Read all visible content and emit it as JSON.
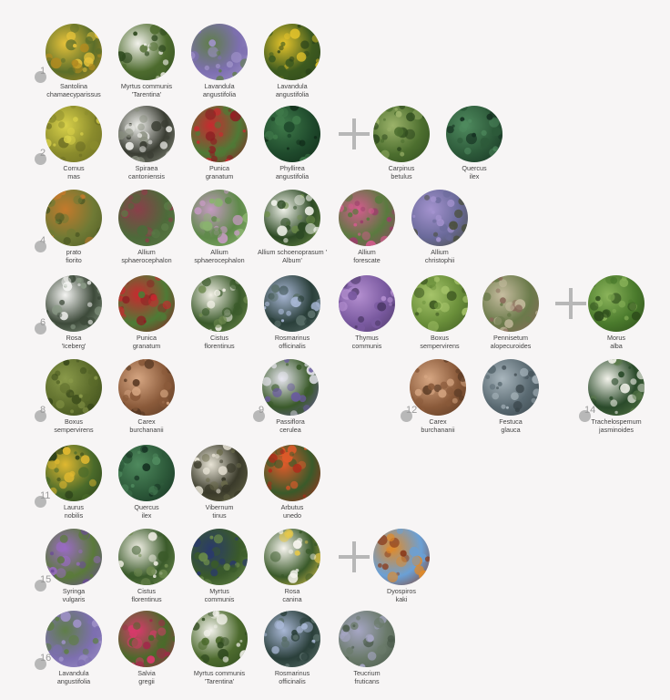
{
  "groups": [
    {
      "number": "1",
      "plants": [
        {
          "line1": "Santolina",
          "line2": "chamaecyparissus",
          "icon": "santolina-photo",
          "colors": [
            "#5b6e2a",
            "#e6c23a",
            "#b18b20"
          ]
        },
        {
          "line1": "Myrtus communis",
          "line2": "'Tarentina'",
          "icon": "myrtus-photo",
          "colors": [
            "#4d6b2e",
            "#f3f2ec",
            "#2f4a1f"
          ]
        },
        {
          "line1": "Lavandula",
          "line2": "angustifolia",
          "icon": "lavandula-photo",
          "colors": [
            "#7d6fb0",
            "#5f7e48",
            "#9f92c8"
          ]
        },
        {
          "line1": "Lavandula",
          "line2": "angustifolia",
          "icon": "lavandula-yellow-photo",
          "colors": [
            "#3d5a1f",
            "#e7c52b",
            "#2c441a"
          ]
        }
      ]
    },
    {
      "number": "2",
      "plants": [
        {
          "line1": "Cornus",
          "line2": "mas",
          "icon": "cornus-photo",
          "colors": [
            "#8a8b2c",
            "#d9d14a",
            "#6d6f24"
          ]
        },
        {
          "line1": "Spiraea",
          "line2": "cantoniensis",
          "icon": "spiraea-photo",
          "colors": [
            "#3a3d33",
            "#f0f0ec",
            "#8a8f80"
          ]
        },
        {
          "line1": "Punica",
          "line2": "granatum",
          "icon": "punica-photo",
          "colors": [
            "#4f7a36",
            "#c8292f",
            "#8d1d22"
          ]
        },
        {
          "line1": "Phyllirea",
          "line2": "angustifolia",
          "icon": "phyllirea-photo",
          "colors": [
            "#1f4a2c",
            "#3f7a4a",
            "#102a18"
          ]
        },
        {
          "line1": "Carpinus",
          "line2": "betulus",
          "icon": "carpinus-photo",
          "colors": [
            "#4d6f2f",
            "#9cb36a",
            "#2e4a1e"
          ]
        },
        {
          "line1": "Quercus",
          "line2": "ilex",
          "icon": "quercus-photo",
          "colors": [
            "#2d5a3a",
            "#4f8a5e",
            "#163222"
          ]
        }
      ]
    },
    {
      "number": "4",
      "plants": [
        {
          "line1": "prato",
          "line2": "fiorito",
          "icon": "prato-photo",
          "colors": [
            "#6f7a35",
            "#c47a2c",
            "#4e5a24"
          ]
        },
        {
          "line1": "Allium",
          "line2": "sphaerocephalon",
          "icon": "allium-sphaero-photo",
          "colors": [
            "#4d6a3a",
            "#8a3f4a",
            "#5a7a46"
          ]
        },
        {
          "line1": "Allium",
          "line2": "sphaerocephalon",
          "icon": "allium-sphaero-pink-photo",
          "colors": [
            "#5f8a4a",
            "#c59ac2",
            "#8ab36f"
          ]
        },
        {
          "line1": "Allium schoenoprasum '",
          "line2": "Album'",
          "icon": "allium-album-photo",
          "colors": [
            "#2d4a24",
            "#f0f2ea",
            "#6f8f4a"
          ]
        },
        {
          "line1": "Allium",
          "line2": "forescate",
          "icon": "allium-forescate-photo",
          "colors": [
            "#5a7a3f",
            "#d45a8e",
            "#9a3f6a"
          ]
        },
        {
          "line1": "Allium",
          "line2": "christophii",
          "icon": "allium-christophii-photo",
          "colors": [
            "#6a6a9a",
            "#a493cf",
            "#4a4f3a"
          ]
        }
      ]
    },
    {
      "number": "6",
      "plants": [
        {
          "line1": "Rosa",
          "line2": "'Iceberg'",
          "icon": "rosa-iceberg-photo",
          "colors": [
            "#3d4a3a",
            "#f4f4f2",
            "#8a9a86"
          ]
        },
        {
          "line1": "Punica",
          "line2": "granatum",
          "icon": "punica-photo",
          "colors": [
            "#4f7a36",
            "#c8292f",
            "#8d1d22"
          ]
        },
        {
          "line1": "Cistus",
          "line2": "florentinus",
          "icon": "cistus-photo",
          "colors": [
            "#3a5a2a",
            "#f2f0e6",
            "#6f8a4f"
          ]
        },
        {
          "line1": "Rosmarinus",
          "line2": "officinalis",
          "icon": "rosmarinus-photo",
          "colors": [
            "#2a3f3a",
            "#a9b8d6",
            "#5a6f6a"
          ]
        },
        {
          "line1": "Thymus",
          "line2": "communis",
          "icon": "thymus-photo",
          "colors": [
            "#7a5aa0",
            "#b48fd0",
            "#4f3a6a"
          ]
        },
        {
          "line1": "Boxus",
          "line2": "sempervirens",
          "icon": "boxus-photo",
          "colors": [
            "#6a8f3a",
            "#a6c46a",
            "#3f5a22"
          ]
        },
        {
          "line1": "Pennisetum",
          "line2": "alopecuroides",
          "icon": "pennisetum-photo",
          "colors": [
            "#6a7a4a",
            "#c7bda0",
            "#8a6a5a"
          ]
        },
        {
          "line1": "Morus",
          "line2": "alba",
          "icon": "morus-photo",
          "colors": [
            "#4a7a2c",
            "#8ab35a",
            "#2c4a1a"
          ]
        }
      ]
    },
    {
      "number": "8",
      "plants": [
        {
          "line1": "Boxus",
          "line2": "sempervirens",
          "icon": "boxus-hedge-photo",
          "colors": [
            "#5a6a2a",
            "#8a9a4a",
            "#3a4a1a"
          ]
        },
        {
          "line1": "Carex",
          "line2": "burchananii",
          "icon": "carex-photo",
          "colors": [
            "#8a5a3a",
            "#d6a682",
            "#5a3a24"
          ]
        }
      ]
    },
    {
      "number": "9",
      "plants": [
        {
          "line1": "Passiflora",
          "line2": "cerulea",
          "icon": "passiflora-photo",
          "colors": [
            "#3a5a2a",
            "#e8e6f0",
            "#6a5aa0"
          ]
        }
      ]
    },
    {
      "number": "12",
      "plants": [
        {
          "line1": "Carex",
          "line2": "burchananii",
          "icon": "carex-photo",
          "colors": [
            "#8a5a3a",
            "#d6a682",
            "#5a3a24"
          ]
        },
        {
          "line1": "Festuca",
          "line2": "glauca",
          "icon": "festuca-photo",
          "colors": [
            "#5a6a72",
            "#a9b6bd",
            "#3a464c"
          ]
        }
      ]
    },
    {
      "number": "14",
      "plants": [
        {
          "line1": "Trachelospemum",
          "line2": "jasminoides",
          "icon": "trachelospermum-photo",
          "colors": [
            "#2a4a2a",
            "#f2f2ea",
            "#5a7a4a"
          ]
        }
      ]
    },
    {
      "number": "11",
      "plants": [
        {
          "line1": "Laurus",
          "line2": "nobilis",
          "icon": "laurus-photo",
          "colors": [
            "#4a6a2a",
            "#e0b830",
            "#2a3f18"
          ]
        },
        {
          "line1": "Quercus",
          "line2": "ilex",
          "icon": "quercus-photo",
          "colors": [
            "#2d5a3a",
            "#4f8a5e",
            "#163222"
          ]
        },
        {
          "line1": "Vibernum",
          "line2": "tinus",
          "icon": "viburnum-photo",
          "colors": [
            "#3a3a2a",
            "#e8e4d6",
            "#6a6a4a"
          ]
        },
        {
          "line1": "Arbutus",
          "line2": "unedo",
          "icon": "arbutus-photo",
          "colors": [
            "#3a5a2a",
            "#e05a2a",
            "#b02a1a"
          ]
        }
      ]
    },
    {
      "number": "15",
      "plants": [
        {
          "line1": "Syringa",
          "line2": "vulgaris",
          "icon": "syringa-photo",
          "colors": [
            "#5a7a3a",
            "#9a6ac4",
            "#6a4a9a"
          ]
        },
        {
          "line1": "Cistus",
          "line2": "florentinus",
          "icon": "cistus-photo",
          "colors": [
            "#3a5a2a",
            "#f2f0e6",
            "#6f8a4f"
          ]
        },
        {
          "line1": "Myrtus",
          "line2": "communis",
          "icon": "myrtus-berry-photo",
          "colors": [
            "#3a5a2a",
            "#2a3a6a",
            "#6a8a4a"
          ]
        },
        {
          "line1": "Rosa",
          "line2": "canina",
          "icon": "rosa-canina-photo",
          "colors": [
            "#3a5a2a",
            "#f6f4ee",
            "#e6c84a"
          ]
        },
        {
          "line1": "Dyospiros",
          "line2": "kaki",
          "icon": "kaki-photo",
          "colors": [
            "#6aa0d6",
            "#e08a2a",
            "#8a3a1a"
          ]
        }
      ]
    },
    {
      "number": "16",
      "plants": [
        {
          "line1": "Lavandula",
          "line2": "angustifolia",
          "icon": "lavandula-photo",
          "colors": [
            "#7d6fb0",
            "#5f7e48",
            "#9f92c8"
          ]
        },
        {
          "line1": "Salvia",
          "line2": "gregii",
          "icon": "salvia-photo",
          "colors": [
            "#4a6a2a",
            "#d63a6a",
            "#a02a4a"
          ]
        },
        {
          "line1": "Myrtus communis",
          "line2": "'Tarentina'",
          "icon": "myrtus-photo",
          "colors": [
            "#4d6b2e",
            "#f3f2ec",
            "#2f4a1f"
          ]
        },
        {
          "line1": "Rosmarinus",
          "line2": "officinalis",
          "icon": "rosmarinus-photo",
          "colors": [
            "#2a3f3a",
            "#a9b8d6",
            "#5a6f6a"
          ]
        },
        {
          "line1": "Teucrium",
          "line2": "fruticans",
          "icon": "teucrium-photo",
          "colors": [
            "#6a7a6a",
            "#a6a6c4",
            "#4a5a4a"
          ]
        }
      ]
    }
  ]
}
